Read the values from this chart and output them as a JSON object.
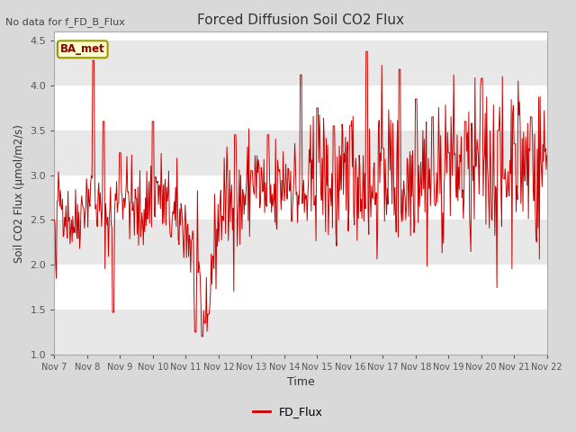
{
  "title": "Forced Diffusion Soil CO2 Flux",
  "xlabel": "Time",
  "ylabel": "Soil CO2 Flux (μmol/m2/s)",
  "no_data_text": "No data for f_FD_B_Flux",
  "legend_label": "FD_Flux",
  "box_label": "BA_met",
  "ylim": [
    1.0,
    4.6
  ],
  "xlim": [
    0,
    15
  ],
  "line_color": "#cc0000",
  "fig_facecolor": "#d9d9d9",
  "plot_facecolor": "#ffffff",
  "grid_color": "#e0e0e0",
  "x_tick_labels": [
    "Nov 7",
    "Nov 8",
    "Nov 9",
    "Nov 10",
    "Nov 11",
    "Nov 12",
    "Nov 13",
    "Nov 14",
    "Nov 15",
    "Nov 16",
    "Nov 17",
    "Nov 18",
    "Nov 19",
    "Nov 20",
    "Nov 21",
    "Nov 22"
  ],
  "y_ticks": [
    1.0,
    1.5,
    2.0,
    2.5,
    3.0,
    3.5,
    4.0,
    4.5
  ],
  "seed": 42,
  "n_points": 720
}
